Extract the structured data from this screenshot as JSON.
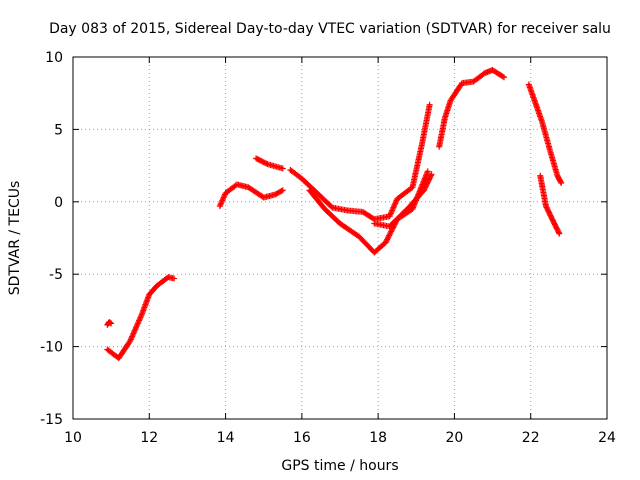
{
  "chart_data": {
    "type": "scatter",
    "title": "Day 083 of 2015, Sidereal Day-to-day VTEC variation (SDTVAR) for receiver salu",
    "xlabel": "GPS time / hours",
    "ylabel": "SDTVAR / TECUs",
    "xlim": [
      10,
      24
    ],
    "ylim": [
      -15,
      10
    ],
    "xticks": [
      "10",
      "12",
      "14",
      "16",
      "18",
      "20",
      "22",
      "24"
    ],
    "yticks": [
      "-15",
      "-10",
      "-5",
      "0",
      "5",
      "10"
    ],
    "grid": true,
    "marker": "+",
    "color": "#ff0000",
    "series": [
      {
        "name": "s1",
        "x": [
          10.9,
          10.95,
          11.0
        ],
        "y": [
          -8.5,
          -8.3,
          -8.4
        ]
      },
      {
        "name": "s2",
        "x": [
          10.9,
          11.1,
          11.2,
          11.5,
          11.8,
          12.0,
          12.2,
          12.5,
          12.65
        ],
        "y": [
          -10.2,
          -10.6,
          -10.8,
          -9.6,
          -7.8,
          -6.4,
          -5.8,
          -5.2,
          -5.3
        ]
      },
      {
        "name": "s3",
        "x": [
          13.85,
          14.0,
          14.3,
          14.6,
          15.0,
          15.3,
          15.5
        ],
        "y": [
          -0.3,
          0.6,
          1.2,
          1.0,
          0.3,
          0.5,
          0.8
        ]
      },
      {
        "name": "s4",
        "x": [
          14.8,
          15.1,
          15.5
        ],
        "y": [
          3.0,
          2.6,
          2.3
        ]
      },
      {
        "name": "s5",
        "x": [
          15.7,
          16.0,
          16.4,
          16.8,
          17.2,
          17.6,
          17.9,
          18.3,
          18.5,
          18.9,
          19.15,
          19.35
        ],
        "y": [
          2.2,
          1.6,
          0.6,
          -0.4,
          -0.6,
          -0.7,
          -1.2,
          -1.0,
          0.2,
          1.0,
          4.0,
          6.7
        ]
      },
      {
        "name": "s6",
        "x": [
          16.2,
          16.6,
          17.0,
          17.5,
          17.9,
          18.2,
          18.5,
          18.9,
          19.3
        ],
        "y": [
          0.8,
          -0.5,
          -1.5,
          -2.4,
          -3.5,
          -2.8,
          -1.2,
          -0.5,
          2.1
        ]
      },
      {
        "name": "s7",
        "x": [
          17.9,
          18.3,
          18.8,
          19.2,
          19.4
        ],
        "y": [
          -1.5,
          -1.7,
          -0.4,
          0.8,
          1.9
        ]
      },
      {
        "name": "s8",
        "x": [
          19.6,
          19.75,
          19.9,
          20.2,
          20.5,
          20.8,
          21.0,
          21.3
        ],
        "y": [
          3.8,
          5.8,
          7.0,
          8.2,
          8.3,
          8.9,
          9.1,
          8.6
        ]
      },
      {
        "name": "s9",
        "x": [
          21.95,
          22.1,
          22.3,
          22.5,
          22.7,
          22.8
        ],
        "y": [
          8.1,
          7.0,
          5.5,
          3.6,
          1.8,
          1.3
        ]
      },
      {
        "name": "s10",
        "x": [
          22.25,
          22.4,
          22.6,
          22.75
        ],
        "y": [
          1.8,
          -0.3,
          -1.4,
          -2.2
        ]
      }
    ]
  }
}
